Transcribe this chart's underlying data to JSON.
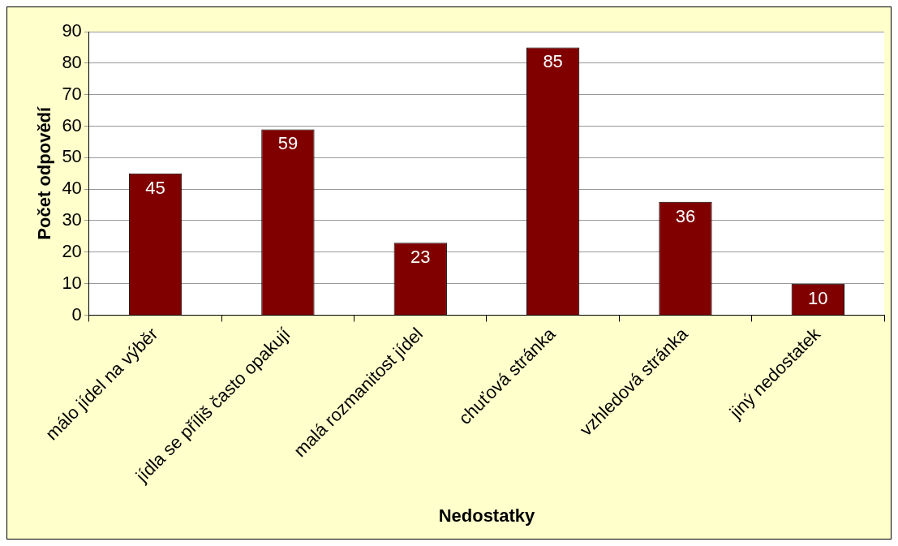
{
  "chart_data": {
    "type": "bar",
    "xlabel": "Nedostatky",
    "ylabel": "Počet odpovědí",
    "categories": [
      "málo jídel na výběr",
      "jídla se příliš často opakují",
      "malá rozmanitost jídel",
      "chuťová stránka",
      "vzhledová stránka",
      "jiný nedostatek"
    ],
    "values": [
      45,
      59,
      23,
      85,
      36,
      10
    ],
    "color": "#800000",
    "ylim": [
      0,
      90
    ],
    "yticks": [
      0,
      10,
      20,
      30,
      40,
      50,
      60,
      70,
      80,
      90
    ],
    "grid": "y",
    "data_labels": true
  }
}
